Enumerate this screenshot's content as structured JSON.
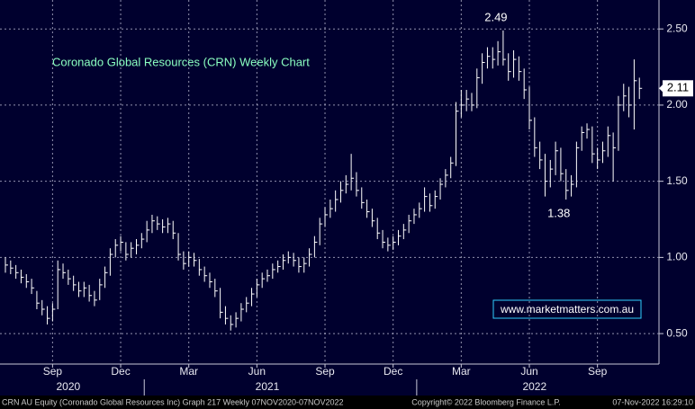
{
  "chart_data": {
    "type": "hlc",
    "title": "Coronado Global Resources (CRN) Weekly Chart",
    "categories": [
      null,
      null,
      null,
      null,
      null,
      null,
      null,
      null,
      null,
      "Sep",
      null,
      null,
      null,
      null,
      null,
      null,
      null,
      null,
      null,
      null,
      null,
      null,
      "Dec",
      null,
      null,
      null,
      null,
      null,
      null,
      null,
      null,
      null,
      null,
      null,
      null,
      "Mar",
      null,
      null,
      null,
      null,
      null,
      null,
      null,
      null,
      null,
      null,
      null,
      null,
      "Jun",
      null,
      null,
      null,
      null,
      null,
      null,
      null,
      null,
      null,
      null,
      null,
      null,
      "Sep",
      null,
      null,
      null,
      null,
      null,
      null,
      null,
      null,
      null,
      null,
      null,
      null,
      "Dec",
      null,
      null,
      null,
      null,
      null,
      null,
      null,
      null,
      null,
      null,
      null,
      null,
      "Mar",
      null,
      null,
      null,
      null,
      null,
      null,
      null,
      null,
      null,
      null,
      null,
      null,
      "Jun",
      null,
      null,
      null,
      null,
      null,
      null,
      null,
      null,
      null,
      null,
      null,
      null,
      "Sep",
      null,
      null,
      null,
      null,
      null,
      null,
      null,
      null
    ],
    "year_labels": [
      null,
      null,
      null,
      null,
      null,
      null,
      null,
      null,
      null,
      null,
      null,
      null,
      "2020",
      null,
      null,
      null,
      null,
      null,
      null,
      null,
      null,
      null,
      null,
      null,
      null,
      null,
      null,
      null,
      null,
      null,
      null,
      null,
      null,
      null,
      null,
      null,
      null,
      null,
      null,
      null,
      null,
      null,
      null,
      null,
      null,
      null,
      null,
      null,
      null,
      null,
      "2021",
      null,
      null,
      null,
      null,
      null,
      null,
      null,
      null,
      null,
      null,
      null,
      null,
      null,
      null,
      null,
      null,
      null,
      null,
      null,
      null,
      null,
      null,
      null,
      null,
      null,
      null,
      null,
      null,
      null,
      null,
      null,
      null,
      null,
      null,
      null,
      null,
      null,
      null,
      null,
      null,
      null,
      null,
      null,
      null,
      null,
      null,
      null,
      null,
      null,
      null,
      "2022",
      null,
      null,
      null,
      null,
      null,
      null,
      null,
      null,
      null,
      null,
      null,
      null,
      null,
      null,
      null,
      null,
      null,
      null,
      null,
      null
    ],
    "high": [
      1.0,
      0.98,
      0.95,
      0.92,
      0.89,
      0.86,
      0.78,
      0.72,
      0.68,
      0.7,
      0.98,
      0.96,
      0.92,
      0.88,
      0.84,
      0.84,
      0.82,
      0.78,
      0.86,
      0.94,
      1.06,
      1.12,
      1.14,
      1.1,
      1.1,
      1.12,
      1.16,
      1.24,
      1.28,
      1.27,
      1.25,
      1.26,
      1.24,
      1.16,
      1.04,
      1.04,
      1.03,
      0.99,
      0.94,
      0.9,
      0.86,
      0.8,
      0.68,
      0.62,
      0.64,
      0.7,
      0.74,
      0.8,
      0.86,
      0.9,
      0.92,
      0.96,
      0.98,
      1.02,
      1.04,
      1.03,
      1.0,
      1.0,
      1.06,
      1.14,
      1.26,
      1.33,
      1.38,
      1.44,
      1.5,
      1.54,
      1.68,
      1.56,
      1.46,
      1.38,
      1.32,
      1.26,
      1.18,
      1.13,
      1.14,
      1.18,
      1.22,
      1.28,
      1.32,
      1.36,
      1.46,
      1.42,
      1.44,
      1.52,
      1.58,
      1.66,
      2.02,
      2.1,
      2.1,
      2.08,
      2.24,
      2.34,
      2.38,
      2.38,
      2.42,
      2.49,
      2.34,
      2.36,
      2.32,
      2.24,
      2.12,
      1.92,
      1.76,
      1.68,
      1.64,
      1.76,
      1.72,
      1.58,
      1.54,
      1.76,
      1.86,
      1.88,
      1.86,
      1.72,
      1.76,
      1.86,
      1.82,
      2.06,
      2.14,
      2.12,
      2.3,
      2.18
    ],
    "low": [
      0.9,
      0.89,
      0.86,
      0.83,
      0.8,
      0.76,
      0.66,
      0.62,
      0.56,
      0.58,
      0.66,
      0.86,
      0.82,
      0.78,
      0.74,
      0.74,
      0.71,
      0.68,
      0.72,
      0.8,
      0.88,
      1.0,
      1.04,
      0.98,
      1.0,
      1.02,
      1.06,
      1.1,
      1.16,
      1.18,
      1.16,
      1.16,
      1.12,
      0.98,
      0.92,
      0.94,
      0.94,
      0.88,
      0.84,
      0.8,
      0.74,
      0.6,
      0.56,
      0.52,
      0.54,
      0.58,
      0.64,
      0.68,
      0.74,
      0.8,
      0.84,
      0.86,
      0.9,
      0.92,
      0.96,
      0.94,
      0.9,
      0.9,
      0.94,
      1.0,
      1.08,
      1.2,
      1.26,
      1.3,
      1.36,
      1.42,
      1.44,
      1.4,
      1.32,
      1.26,
      1.2,
      1.12,
      1.06,
      1.04,
      1.05,
      1.08,
      1.12,
      1.16,
      1.22,
      1.26,
      1.3,
      1.3,
      1.32,
      1.38,
      1.46,
      1.52,
      1.6,
      1.92,
      1.96,
      1.96,
      1.98,
      2.14,
      2.24,
      2.24,
      2.26,
      2.26,
      2.16,
      2.18,
      2.16,
      2.04,
      1.84,
      1.66,
      1.58,
      1.4,
      1.46,
      1.54,
      1.5,
      1.38,
      1.4,
      1.46,
      1.7,
      1.78,
      1.62,
      1.58,
      1.62,
      1.66,
      1.5,
      1.7,
      1.96,
      1.92,
      1.84,
      2.04
    ],
    "close": [
      0.95,
      0.93,
      0.9,
      0.87,
      0.84,
      0.8,
      0.7,
      0.66,
      0.6,
      0.66,
      0.92,
      0.9,
      0.86,
      0.82,
      0.78,
      0.8,
      0.75,
      0.72,
      0.82,
      0.9,
      1.02,
      1.08,
      1.1,
      1.02,
      1.06,
      1.08,
      1.12,
      1.18,
      1.24,
      1.22,
      1.2,
      1.22,
      1.16,
      1.02,
      0.96,
      1.0,
      0.98,
      0.92,
      0.88,
      0.84,
      0.78,
      0.64,
      0.6,
      0.56,
      0.6,
      0.66,
      0.7,
      0.76,
      0.82,
      0.86,
      0.88,
      0.92,
      0.94,
      0.98,
      1.0,
      0.98,
      0.94,
      0.96,
      1.02,
      1.1,
      1.22,
      1.28,
      1.32,
      1.38,
      1.44,
      1.48,
      1.52,
      1.44,
      1.36,
      1.3,
      1.24,
      1.16,
      1.1,
      1.08,
      1.1,
      1.14,
      1.18,
      1.24,
      1.28,
      1.32,
      1.4,
      1.34,
      1.4,
      1.48,
      1.54,
      1.62,
      1.96,
      2.0,
      2.04,
      2.0,
      2.18,
      2.28,
      2.32,
      2.3,
      2.35,
      2.3,
      2.22,
      2.3,
      2.22,
      2.1,
      1.9,
      1.72,
      1.64,
      1.5,
      1.58,
      1.7,
      1.55,
      1.44,
      1.48,
      1.72,
      1.82,
      1.84,
      1.68,
      1.64,
      1.7,
      1.8,
      1.72,
      2.0,
      2.06,
      2.0,
      2.16,
      2.11
    ],
    "color": "#ffffff",
    "ylim": [
      0.3,
      2.69
    ],
    "yticks": [
      {
        "value": 0.5,
        "label": "0.50"
      },
      {
        "value": 1,
        "label": "1.00"
      },
      {
        "value": 1.5,
        "label": "1.50"
      },
      {
        "value": 2,
        "label": "2.00"
      },
      {
        "value": 2.5,
        "label": "2.50"
      }
    ],
    "grid": true,
    "annotations": [
      {
        "series": "high",
        "index": 95
      },
      {
        "series": "low",
        "index": 107
      }
    ],
    "last_price": {
      "series": "close",
      "index": 121
    }
  },
  "watermark": "www.marketmatters.com.au",
  "footer": {
    "left": "CRN AU Equity (Coronado Global Resources Inc) Graph 217  Weekly 07NOV2020-07NOV2022",
    "center": "Copyright© 2022 Bloomberg Finance L.P.",
    "right": "07-Nov-2022 16:29:10"
  }
}
